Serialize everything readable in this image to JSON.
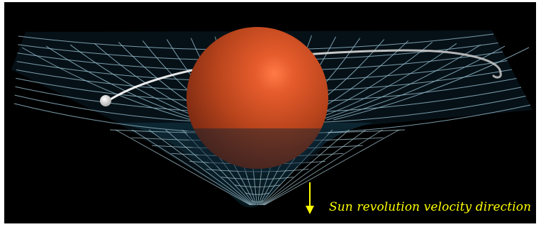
{
  "annotation": {
    "text": "Sun revolution velocity direction",
    "color": "#ffff00"
  },
  "colors": {
    "background": "#000000",
    "grid": "#8fb6c7",
    "sun": "#b8441c",
    "sun_highlight": "#f07040",
    "planet": "#f2f2f2",
    "orbit": "#e6e6e6"
  },
  "elements": {
    "central_mass": "sun-sphere",
    "orbiting_body": "planet",
    "grid": "spacetime-grid",
    "arrow": "down-arrow-icon"
  }
}
